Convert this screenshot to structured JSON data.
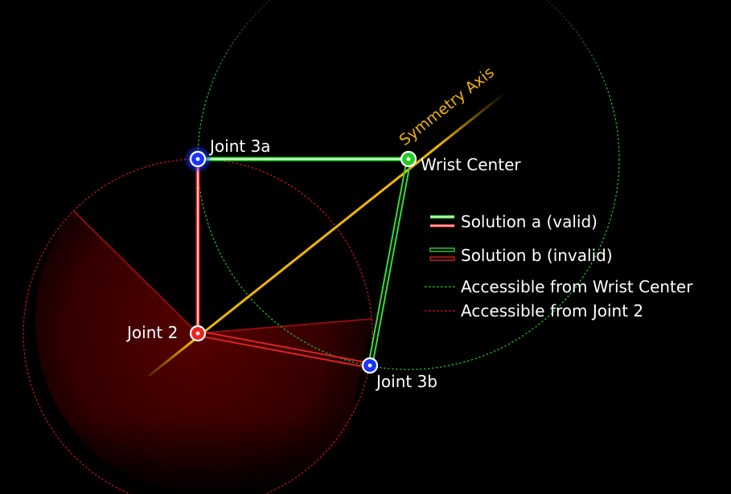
{
  "colors": {
    "background": "#000000",
    "symmetry_axis": "#f0b400",
    "solution_a_green": "#55ff55",
    "solution_a_red": "#ff4444",
    "solution_b_green": "#33dd33",
    "solution_b_red": "#dd2222",
    "joint3_blue": "#1a33ff",
    "wrist_green": "#22cc22",
    "joint2_red": "#ee2222",
    "accessible_wrist": "#22bb22",
    "accessible_joint2": "#cc1111",
    "reach_region": "#5a0000"
  },
  "labels": {
    "joint3a": "Joint 3a",
    "joint3b": "Joint 3b",
    "joint2": "Joint 2",
    "wrist_center": "Wrist Center",
    "symmetry_axis": "Symmetry Axis"
  },
  "legend": {
    "solution_a": "Solution a (valid)",
    "solution_b": "Solution b (invalid)",
    "accessible_wrist": "Accessible from Wrist Center",
    "accessible_joint2": "Accessible from Joint 2"
  }
}
